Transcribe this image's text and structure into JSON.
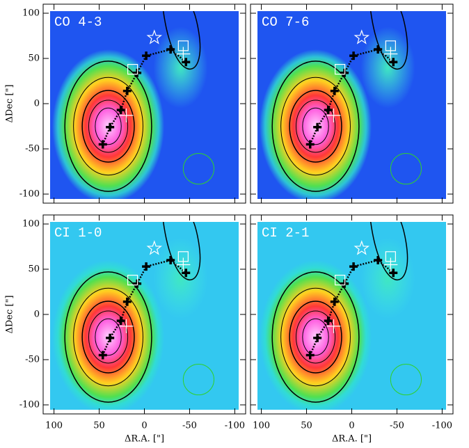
{
  "chart_data": [
    {
      "type": "map",
      "title": "CO 4-3",
      "ylabel": "ΔDec [\"]",
      "background_color": "#1f55f0",
      "xlim": [
        112,
        -112
      ],
      "ylim": [
        -110,
        110
      ],
      "xticks": [
        100,
        50,
        0,
        -50,
        -100
      ],
      "yticks": [
        100,
        50,
        0,
        -50,
        -100
      ],
      "series": [
        {
          "marker": "cross",
          "color": "#000000",
          "x": [
            46,
            38,
            26,
            19,
            8,
            -2,
            -29,
            -46
          ],
          "y": [
            -45,
            -26,
            -7,
            14,
            34,
            53,
            60,
            46
          ]
        },
        {
          "marker": "star",
          "color": "#ffffff",
          "x": [
            -11
          ],
          "y": [
            73
          ]
        },
        {
          "marker": "square",
          "color": "#ffffff",
          "x": [
            13,
            -43
          ],
          "y": [
            38,
            64
          ]
        },
        {
          "marker": "plus",
          "color": "#ffffff",
          "x": [
            20,
            -43
          ],
          "y": [
            -13,
            55
          ]
        }
      ],
      "beam": {
        "x": -60,
        "y": -72,
        "radius": 17,
        "color": "#30d030"
      }
    },
    {
      "type": "map",
      "title": "CO 7-6",
      "background_color": "#1f55f0",
      "xlim": [
        112,
        -112
      ],
      "ylim": [
        -110,
        110
      ],
      "xticks": [
        100,
        50,
        0,
        -50,
        -100
      ],
      "yticks": [
        100,
        50,
        0,
        -50,
        -100
      ],
      "series": [
        {
          "marker": "cross",
          "color": "#000000",
          "x": [
            46,
            38,
            26,
            19,
            8,
            -2,
            -29,
            -46
          ],
          "y": [
            -45,
            -26,
            -7,
            14,
            34,
            53,
            60,
            46
          ]
        },
        {
          "marker": "star",
          "color": "#ffffff",
          "x": [
            -11
          ],
          "y": [
            73
          ]
        },
        {
          "marker": "square",
          "color": "#ffffff",
          "x": [
            13,
            -43
          ],
          "y": [
            38,
            64
          ]
        },
        {
          "marker": "plus",
          "color": "#ffffff",
          "x": [
            20,
            -43
          ],
          "y": [
            -13,
            55
          ]
        }
      ],
      "beam": {
        "x": -60,
        "y": -72,
        "radius": 17,
        "color": "#30d030"
      }
    },
    {
      "type": "map",
      "title": "CI 1-0",
      "ylabel": "ΔDec [\"]",
      "xlabel": "ΔR.A. [\"]",
      "background_color": "#33c8f0",
      "xlim": [
        112,
        -112
      ],
      "ylim": [
        -110,
        110
      ],
      "xticks": [
        100,
        50,
        0,
        -50,
        -100
      ],
      "yticks": [
        100,
        50,
        0,
        -50,
        -100
      ],
      "series": [
        {
          "marker": "cross",
          "color": "#000000",
          "x": [
            46,
            38,
            26,
            19,
            8,
            -2,
            -29,
            -46
          ],
          "y": [
            -45,
            -26,
            -7,
            14,
            34,
            53,
            60,
            46
          ]
        },
        {
          "marker": "star",
          "color": "#ffffff",
          "x": [
            -11
          ],
          "y": [
            73
          ]
        },
        {
          "marker": "square",
          "color": "#ffffff",
          "x": [
            13,
            -43
          ],
          "y": [
            38,
            64
          ]
        },
        {
          "marker": "plus",
          "color": "#ffffff",
          "x": [
            20,
            -43
          ],
          "y": [
            -13,
            55
          ]
        }
      ],
      "beam": {
        "x": -60,
        "y": -72,
        "radius": 17,
        "color": "#30d030"
      }
    },
    {
      "type": "map",
      "title": "CI 2-1",
      "xlabel": "ΔR.A. [\"]",
      "background_color": "#33c8f0",
      "xlim": [
        112,
        -112
      ],
      "ylim": [
        -110,
        110
      ],
      "xticks": [
        100,
        50,
        0,
        -50,
        -100
      ],
      "yticks": [
        100,
        50,
        0,
        -50,
        -100
      ],
      "series": [
        {
          "marker": "cross",
          "color": "#000000",
          "x": [
            46,
            38,
            26,
            19,
            8,
            -2,
            -29,
            -46
          ],
          "y": [
            -45,
            -26,
            -7,
            14,
            34,
            53,
            60,
            46
          ]
        },
        {
          "marker": "star",
          "color": "#ffffff",
          "x": [
            -11
          ],
          "y": [
            73
          ]
        },
        {
          "marker": "square",
          "color": "#ffffff",
          "x": [
            13,
            -43
          ],
          "y": [
            38,
            64
          ]
        },
        {
          "marker": "plus",
          "color": "#ffffff",
          "x": [
            20,
            -43
          ],
          "y": [
            -13,
            55
          ]
        }
      ],
      "beam": {
        "x": -60,
        "y": -72,
        "radius": 17,
        "color": "#30d030"
      }
    }
  ]
}
